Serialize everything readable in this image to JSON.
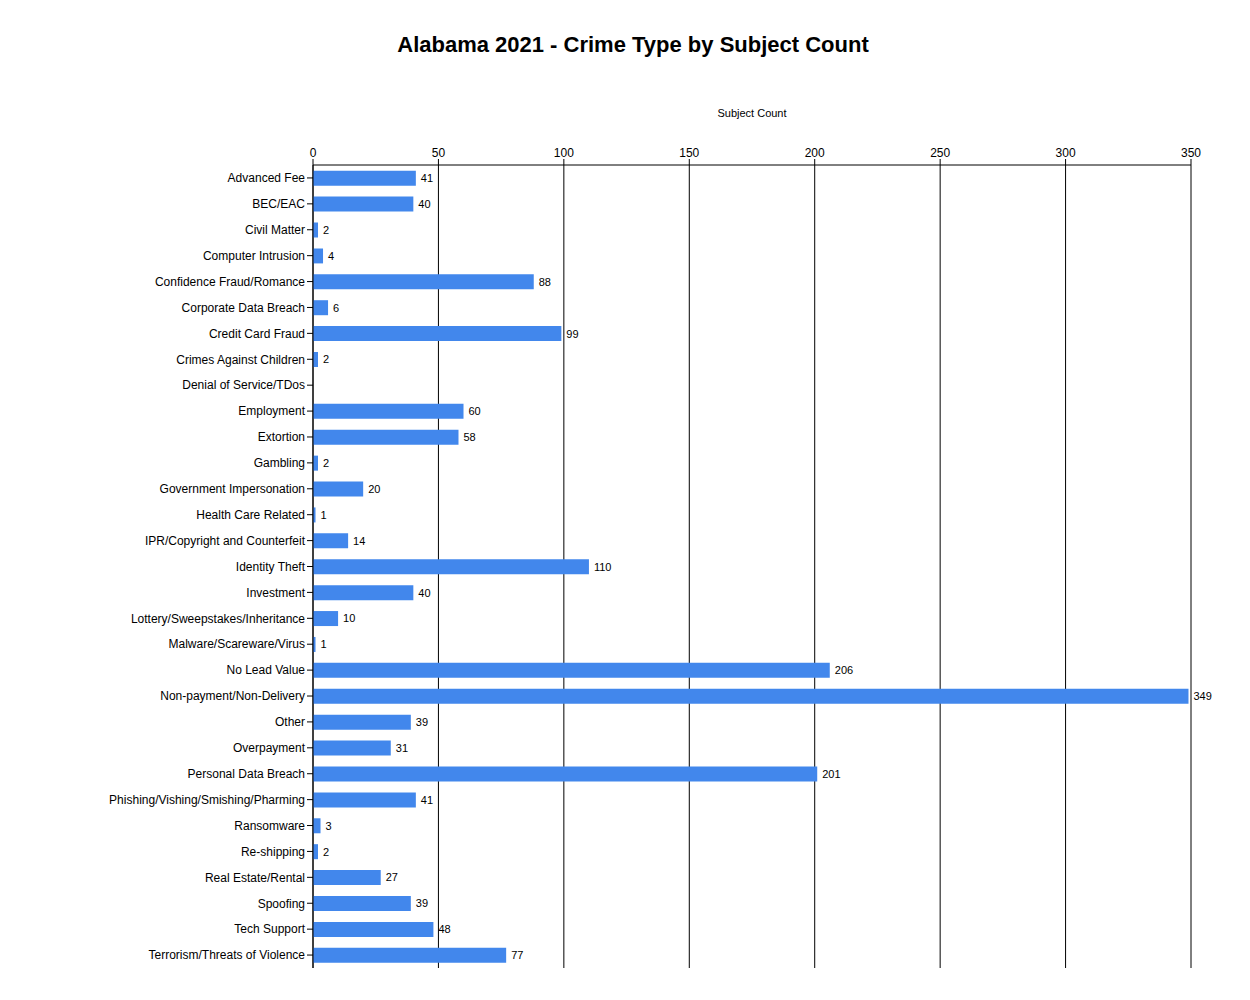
{
  "chart_data": {
    "type": "bar",
    "title": "Alabama 2021 - Crime Type by Subject Count",
    "x_label": "Subject Count",
    "orientation": "horizontal",
    "categories": [
      "Advanced Fee",
      "BEC/EAC",
      "Civil Matter",
      "Computer Intrusion",
      "Confidence Fraud/Romance",
      "Corporate Data Breach",
      "Credit Card Fraud",
      "Crimes Against Children",
      "Denial of Service/TDos",
      "Employment",
      "Extortion",
      "Gambling",
      "Government Impersonation",
      "Health Care Related",
      "IPR/Copyright and Counterfeit",
      "Identity Theft",
      "Investment",
      "Lottery/Sweepstakes/Inheritance",
      "Malware/Scareware/Virus",
      "No Lead Value",
      "Non-payment/Non-Delivery",
      "Other",
      "Overpayment",
      "Personal Data Breach",
      "Phishing/Vishing/Smishing/Pharming",
      "Ransomware",
      "Re-shipping",
      "Real Estate/Rental",
      "Spoofing",
      "Tech Support",
      "Terrorism/Threats of Violence"
    ],
    "values": [
      41,
      40,
      2,
      4,
      88,
      6,
      99,
      2,
      0,
      60,
      58,
      2,
      20,
      1,
      14,
      110,
      40,
      10,
      1,
      206,
      349,
      39,
      31,
      201,
      41,
      3,
      2,
      27,
      39,
      48,
      77
    ],
    "color": "#4287ec",
    "xlim": [
      0,
      350
    ],
    "xticks": [
      0,
      50,
      100,
      150,
      200,
      250,
      300,
      350
    ],
    "grid": true,
    "data_labels": true
  }
}
